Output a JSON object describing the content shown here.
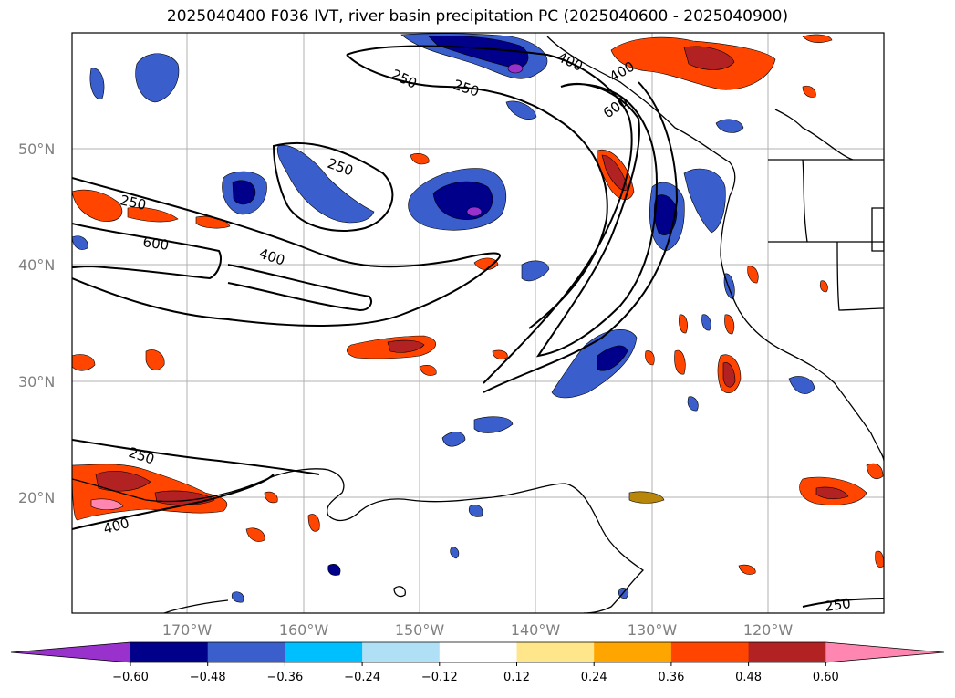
{
  "title": "2025040400 F036 IVT, river basin precipitation PC (2025040600 - 2025040900)",
  "map": {
    "lat_labels": [
      "50°N",
      "40°N",
      "30°N",
      "20°N"
    ],
    "lon_labels": [
      "170°W",
      "160°W",
      "150°W",
      "140°W",
      "130°W",
      "120°W"
    ],
    "contour_labels": [
      "250",
      "250",
      "250",
      "250",
      "600",
      "400",
      "400",
      "600",
      "250",
      "400",
      "250",
      "400"
    ],
    "grid": true
  },
  "colorbar": {
    "ticks": [
      "−0.60",
      "−0.48",
      "−0.36",
      "−0.24",
      "−0.12",
      "0.12",
      "0.24",
      "0.36",
      "0.48",
      "0.60"
    ],
    "colors": [
      "#9932cc",
      "#00008b",
      "#3a5fcd",
      "#00bfff",
      "#b0e0f6",
      "#ffffff",
      "#ffe68a",
      "#ffa500",
      "#ff4500",
      "#b22222",
      "#ff86b0"
    ]
  }
}
